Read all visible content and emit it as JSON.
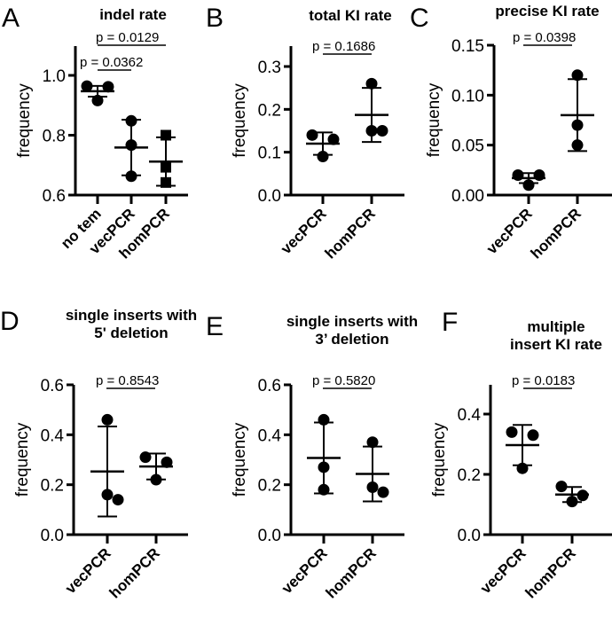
{
  "chart_data": [
    {
      "panel": "A",
      "type": "scatter",
      "title": [
        "indel rate"
      ],
      "ylabel": "frequency",
      "ylim": [
        0.6,
        1.1
      ],
      "yticks": [
        0.6,
        0.8,
        1.0
      ],
      "ytick_labels": [
        "0.6",
        "0.8",
        "1.0"
      ],
      "categories": [
        "no tem",
        "vecPCR",
        "homPCR"
      ],
      "markers": [
        "circle",
        "circle",
        "square"
      ],
      "points": [
        [
          0.964,
          0.962,
          0.916
        ],
        [
          0.848,
          0.767,
          0.663
        ],
        [
          0.8,
          0.693,
          0.642
        ]
      ],
      "mean": [
        0.947,
        0.759,
        0.712
      ],
      "sd": [
        0.018,
        0.093,
        0.081
      ],
      "comparisons": [
        {
          "from": 0,
          "to": 1,
          "label": "p = 0.0362"
        },
        {
          "from": 0,
          "to": 2,
          "label": "p = 0.0129"
        }
      ]
    },
    {
      "panel": "B",
      "type": "scatter",
      "title": [
        "total KI rate"
      ],
      "ylabel": "frequency",
      "ylim": [
        0.0,
        0.34
      ],
      "yticks": [
        0.0,
        0.1,
        0.2,
        0.3
      ],
      "ytick_labels": [
        "0.0",
        "0.1",
        "0.2",
        "0.3"
      ],
      "categories": [
        "vecPCR",
        "homPCR"
      ],
      "markers": [
        "circle",
        "circle"
      ],
      "points": [
        [
          0.14,
          0.13,
          0.09
        ],
        [
          0.26,
          0.15,
          0.15
        ]
      ],
      "mean": [
        0.12,
        0.187
      ],
      "sd": [
        0.026,
        0.063
      ],
      "comparisons": [
        {
          "from": 0,
          "to": 1,
          "label": "p = 0.1686"
        }
      ]
    },
    {
      "panel": "C",
      "type": "scatter",
      "title": [
        "precise KI rate"
      ],
      "ylabel": "frequency",
      "ylim": [
        0.0,
        0.15
      ],
      "yticks": [
        0.0,
        0.05,
        0.1,
        0.15
      ],
      "ytick_labels": [
        "0.00",
        "0.05",
        "0.10",
        "0.15"
      ],
      "categories": [
        "vecPCR",
        "homPCR"
      ],
      "markers": [
        "circle",
        "circle"
      ],
      "points": [
        [
          0.02,
          0.02,
          0.01
        ],
        [
          0.12,
          0.07,
          0.05
        ]
      ],
      "mean": [
        0.017,
        0.08
      ],
      "sd": [
        0.005,
        0.036
      ],
      "comparisons": [
        {
          "from": 0,
          "to": 1,
          "label": "p = 0.0398"
        }
      ]
    },
    {
      "panel": "D",
      "type": "scatter",
      "title": [
        "single inserts with",
        "5' deletion"
      ],
      "ylabel": "frequency",
      "ylim": [
        0.0,
        0.6
      ],
      "yticks": [
        0.0,
        0.2,
        0.4,
        0.6
      ],
      "ytick_labels": [
        "0.0",
        "0.2",
        "0.4",
        "0.6"
      ],
      "categories": [
        "vecPCR",
        "homPCR"
      ],
      "markers": [
        "circle",
        "circle"
      ],
      "points": [
        [
          0.46,
          0.14,
          0.16
        ],
        [
          0.31,
          0.29,
          0.22
        ]
      ],
      "mean": [
        0.253,
        0.273
      ],
      "sd": [
        0.18,
        0.052
      ],
      "comparisons": [
        {
          "from": 0,
          "to": 1,
          "label": "p = 0.8543"
        }
      ]
    },
    {
      "panel": "E",
      "type": "scatter",
      "title": [
        "single inserts with",
        "3’ deletion"
      ],
      "ylabel": "frequency",
      "ylim": [
        0.0,
        0.6
      ],
      "yticks": [
        0.0,
        0.2,
        0.4,
        0.6
      ],
      "ytick_labels": [
        "0.0",
        "0.2",
        "0.4",
        "0.6"
      ],
      "categories": [
        "vecPCR",
        "homPCR"
      ],
      "markers": [
        "circle",
        "circle"
      ],
      "points": [
        [
          0.46,
          0.27,
          0.18
        ],
        [
          0.37,
          0.17,
          0.19
        ]
      ],
      "mean": [
        0.307,
        0.243
      ],
      "sd": [
        0.142,
        0.11
      ],
      "comparisons": [
        {
          "from": 0,
          "to": 1,
          "label": "p = 0.5820"
        }
      ]
    },
    {
      "panel": "F",
      "type": "scatter",
      "title": [
        "multiple",
        "insert KI rate"
      ],
      "ylabel": "frequency",
      "ylim": [
        0.0,
        0.5
      ],
      "yticks": [
        0.0,
        0.2,
        0.4
      ],
      "ytick_labels": [
        "0.0",
        "0.2",
        "0.4"
      ],
      "categories": [
        "vecPCR",
        "homPCR"
      ],
      "markers": [
        "circle",
        "circle"
      ],
      "points": [
        [
          0.34,
          0.33,
          0.22
        ],
        [
          0.16,
          0.13,
          0.11
        ]
      ],
      "mean": [
        0.297,
        0.133
      ],
      "sd": [
        0.067,
        0.025
      ],
      "comparisons": [
        {
          "from": 0,
          "to": 1,
          "label": "p = 0.0183"
        }
      ]
    }
  ]
}
